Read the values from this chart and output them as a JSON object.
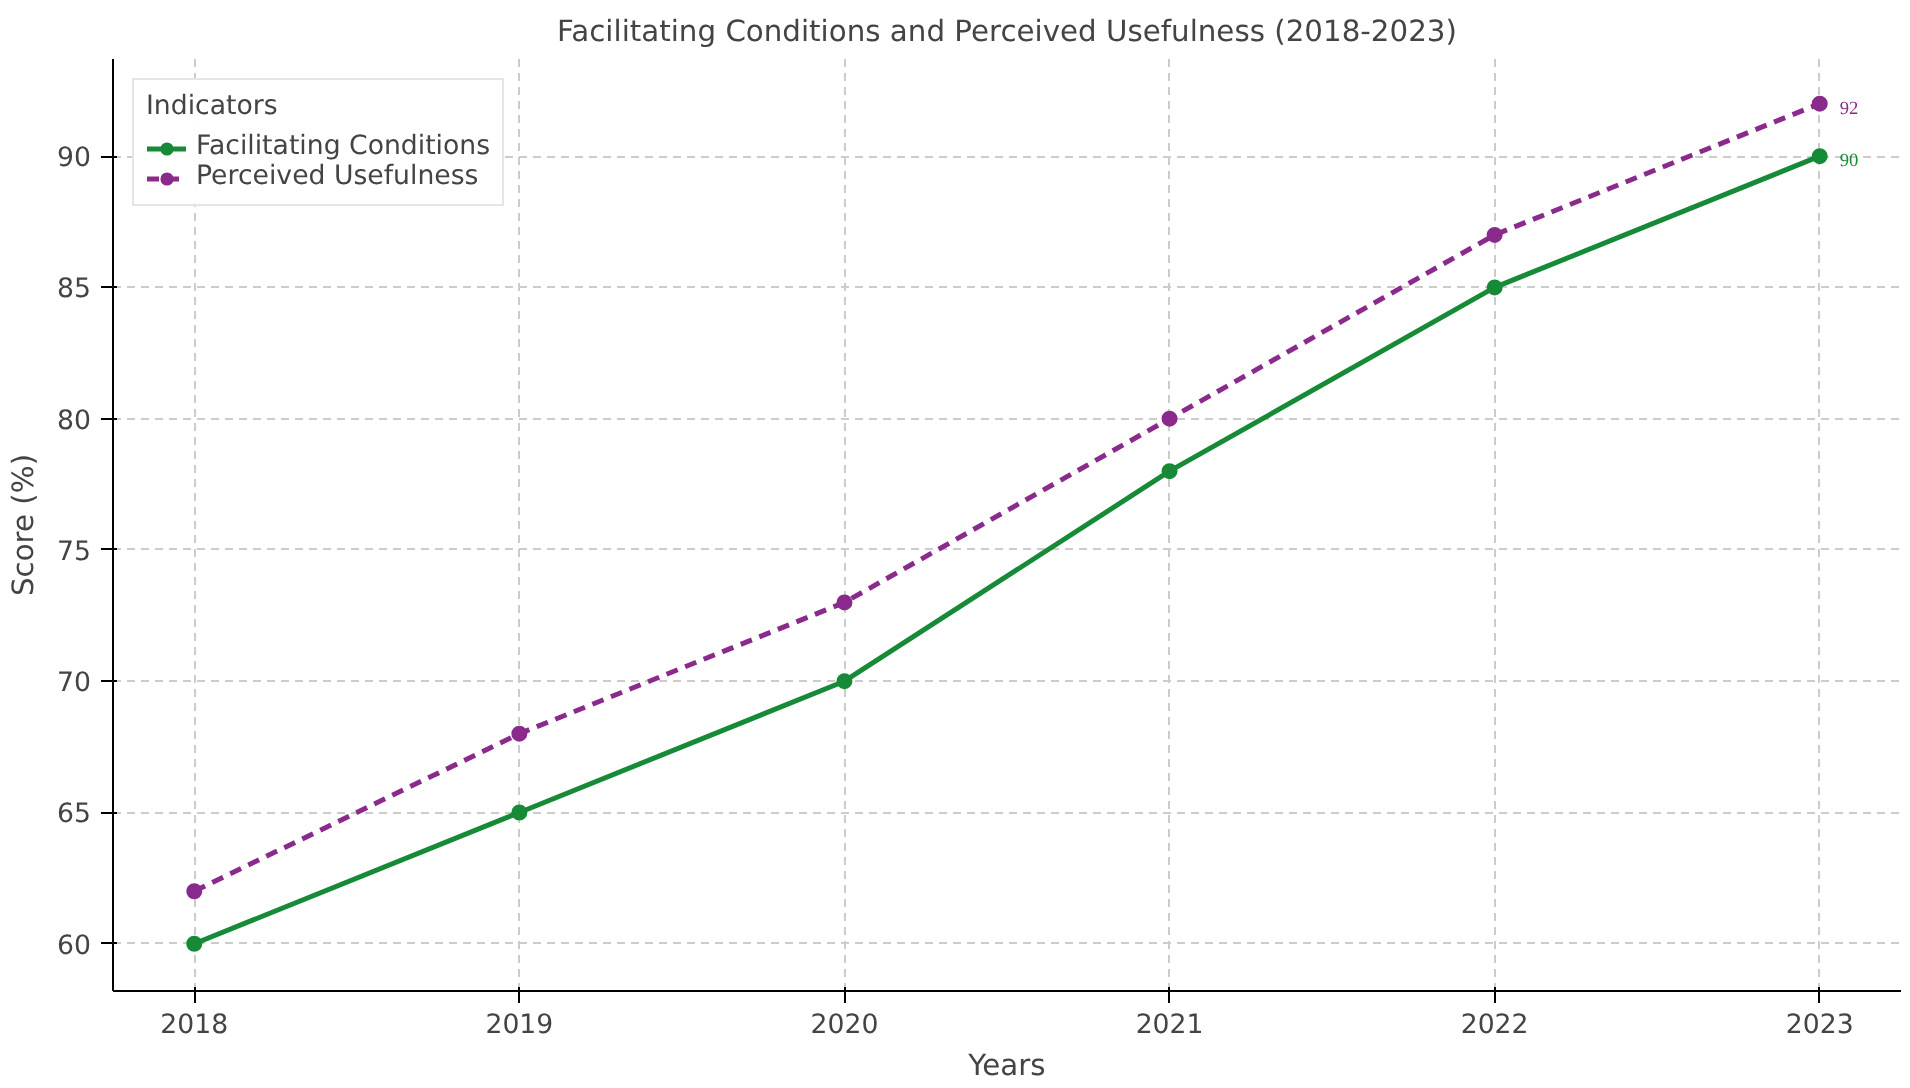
{
  "chart_data": {
    "type": "line",
    "title": "Facilitating Conditions and Perceived Usefulness (2018-2023)",
    "xlabel": "Years",
    "ylabel": "Score (%)",
    "legend_title": "Indicators",
    "x": [
      2018,
      2019,
      2020,
      2021,
      2022,
      2023
    ],
    "series": [
      {
        "name": "Facilitating Conditions",
        "color": "#178a38",
        "line_style": "solid",
        "values": [
          60,
          65,
          70,
          78,
          85,
          90
        ],
        "value_labels": [
          null,
          null,
          null,
          null,
          null,
          "90"
        ]
      },
      {
        "name": "Perceived Usefulness",
        "color": "#8a2a8c",
        "line_style": "dashed",
        "values": [
          62,
          68,
          73,
          80,
          87,
          92
        ],
        "value_labels": [
          null,
          null,
          null,
          null,
          null,
          "92"
        ]
      }
    ],
    "xlim": [
      2017.75,
      2023.25
    ],
    "xticks": [
      2018,
      2019,
      2020,
      2021,
      2022,
      2023
    ],
    "ylim": [
      58.2,
      93.7
    ],
    "yticks": [
      60,
      65,
      70,
      75,
      80,
      85,
      90
    ],
    "grid": true,
    "legend": "top left",
    "marker": "circle"
  }
}
